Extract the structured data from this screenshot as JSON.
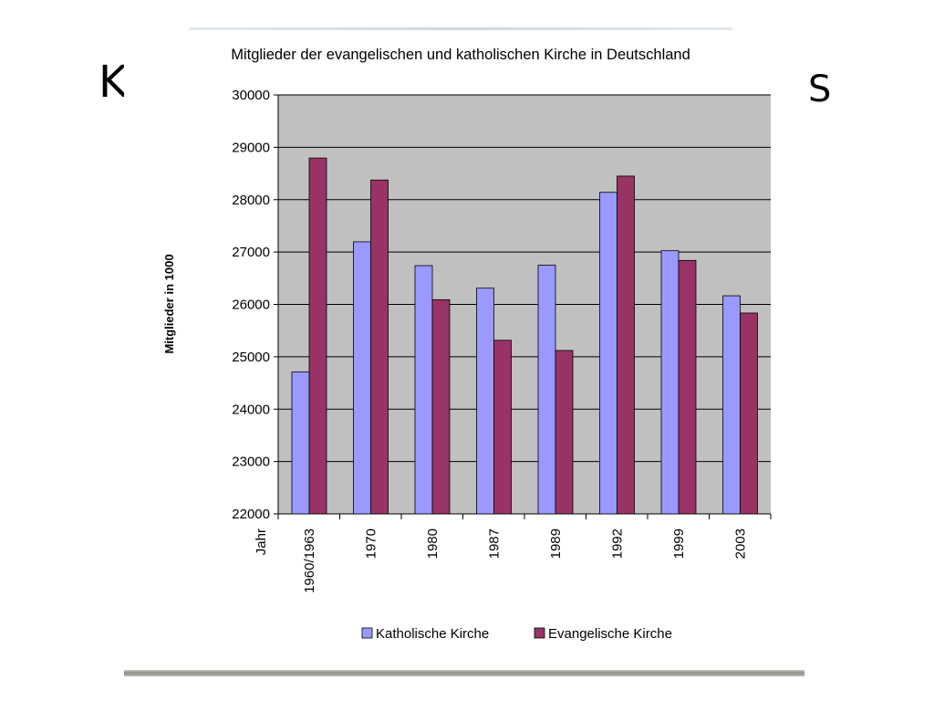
{
  "slide": {
    "title_left_fragment": "K",
    "title_right_fragment": "S"
  },
  "colors": {
    "katholisch": "#9999ff",
    "evangelisch": "#993366",
    "plot_background": "#c0c0c0"
  },
  "chart_data": {
    "type": "bar",
    "title": "Mitglieder der evangelischen und katholischen Kirche in Deutschland",
    "xlabel": "Jahr",
    "ylabel": "Mitglieder in 1000",
    "categories": [
      "1960/1963",
      "1970",
      "1980",
      "1987",
      "1989",
      "1992",
      "1999",
      "2003"
    ],
    "series": [
      {
        "name": "Katholische Kirche",
        "values": [
          24710,
          27195,
          26740,
          26310,
          26750,
          28140,
          27025,
          26165
        ]
      },
      {
        "name": "Evangelische Kirche",
        "values": [
          28795,
          28375,
          26090,
          25315,
          25120,
          28450,
          26840,
          25835
        ]
      }
    ],
    "ylim": [
      22000,
      30000
    ],
    "yticks": [
      22000,
      23000,
      24000,
      25000,
      26000,
      27000,
      28000,
      29000,
      30000
    ],
    "grid": true,
    "legend_position": "bottom"
  }
}
